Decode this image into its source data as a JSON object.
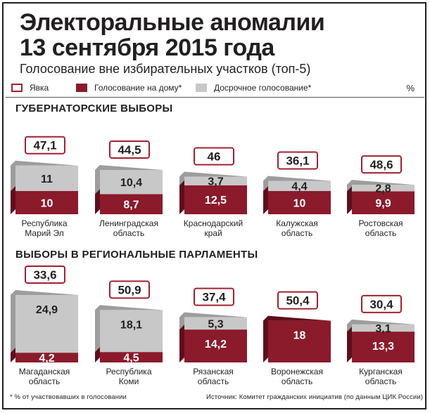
{
  "header": {
    "title_line1": "Электоральные аномалии",
    "title_line2": "13 сентября 2015 года",
    "subtitle": "Голосование вне избирательных участков (топ-5)"
  },
  "legend": {
    "turnout": "Явка",
    "home": "Голосование на дому*",
    "early": "Досрочное голосование*",
    "unit": "%"
  },
  "colors": {
    "home": "#8b1a2b",
    "home_side": "#5e0f1c",
    "early": "#c8c8c8",
    "early_side": "#9d9d9d",
    "turnout_border": "#a3202f"
  },
  "chart_data": [
    {
      "type": "bar",
      "title": "ГУБЕРНАТОРСКИЕ ВЫБОРЫ",
      "categories": [
        "Республика Марий Эл",
        "Ленинградская область",
        "Краснодарский край",
        "Калужская область",
        "Ростовская область"
      ],
      "category_lines": [
        [
          "Республика",
          "Марий Эл"
        ],
        [
          "Ленинградская",
          "область"
        ],
        [
          "Краснодарский",
          "край"
        ],
        [
          "Калужская",
          "область"
        ],
        [
          "Ростовская",
          "область"
        ]
      ],
      "turnout_labels": [
        "47,1",
        "44,5",
        "46",
        "36,1",
        "48,6"
      ],
      "home_labels": [
        "10",
        "8,7",
        "12,5",
        "10",
        "9,9"
      ],
      "early_labels": [
        "11",
        "10,4",
        "3,7",
        "4,4",
        "2,8"
      ],
      "series": [
        {
          "name": "Явка",
          "values": [
            47.1,
            44.5,
            46,
            36.1,
            48.6
          ]
        },
        {
          "name": "Голосование на дому*",
          "values": [
            10,
            8.7,
            12.5,
            10,
            9.9
          ]
        },
        {
          "name": "Досрочное голосование*",
          "values": [
            11,
            10.4,
            3.7,
            4.4,
            2.8
          ]
        }
      ]
    },
    {
      "type": "bar",
      "title": "ВЫБОРЫ В РЕГИОНАЛЬНЫЕ ПАРЛАМЕНТЫ",
      "categories": [
        "Магаданская область",
        "Республика Коми",
        "Рязанская область",
        "Воронежская область",
        "Курганская область"
      ],
      "category_lines": [
        [
          "Магаданская",
          "область"
        ],
        [
          "Республика",
          "Коми"
        ],
        [
          "Рязанская",
          "область"
        ],
        [
          "Воронежская",
          "область"
        ],
        [
          "Курганская",
          "область"
        ]
      ],
      "turnout_labels": [
        "33,6",
        "50,9",
        "37,4",
        "50,4",
        "30,4"
      ],
      "home_labels": [
        "4,2",
        "4,5",
        "14,2",
        "18",
        "13,3"
      ],
      "early_labels": [
        "24,9",
        "18,1",
        "5,3",
        "",
        "3,1"
      ],
      "series": [
        {
          "name": "Явка",
          "values": [
            33.6,
            50.9,
            37.4,
            50.4,
            30.4
          ]
        },
        {
          "name": "Голосование на дому*",
          "values": [
            4.2,
            4.5,
            14.2,
            18,
            13.3
          ]
        },
        {
          "name": "Досрочное голосование*",
          "values": [
            24.9,
            18.1,
            5.3,
            0,
            3.1
          ]
        }
      ]
    }
  ],
  "footer": {
    "note": "* % от участвовавших в голосовании",
    "source": "Источник: Комитет гражданских инициатив (по данным ЦИК России)"
  }
}
